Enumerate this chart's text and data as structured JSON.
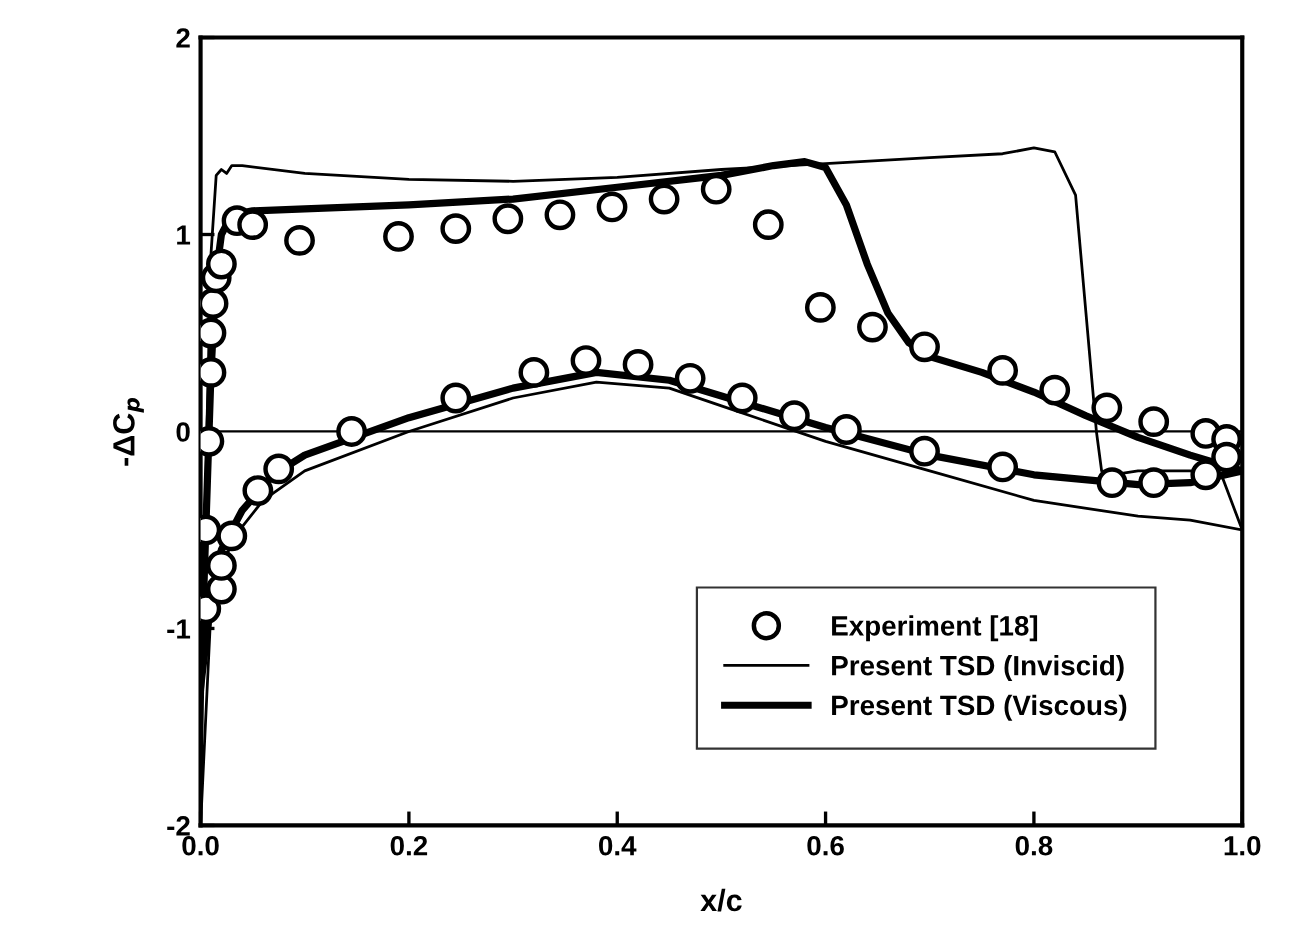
{
  "chart_data": {
    "type": "line",
    "xlabel": "x/c",
    "ylabel": "-ΔC$_{p}$",
    "xlim": [
      0,
      1
    ],
    "ylim": [
      -2,
      2
    ],
    "xticks": [
      {
        "value": 0,
        "label": "0.0"
      },
      {
        "value": 0.2,
        "label": "0.2"
      },
      {
        "value": 0.4,
        "label": "0.4"
      },
      {
        "value": 0.6,
        "label": "0.6"
      },
      {
        "value": 0.8,
        "label": "0.8"
      },
      {
        "value": 1,
        "label": "1.0"
      }
    ],
    "yticks": [
      -2,
      -1,
      0,
      1,
      2
    ],
    "grid": false,
    "legend": "bottom right",
    "ref_lines": [
      {
        "axis": "y",
        "value": 0,
        "color": "#000000",
        "line_style": "solid"
      }
    ],
    "series": [
      {
        "name": "Experiment [18]",
        "type": "scatter",
        "marker": "circle",
        "color": "#000000",
        "x": [
          0.005,
          0.005,
          0.008,
          0.01,
          0.01,
          0.012,
          0.015,
          0.02,
          0.035,
          0.05,
          0.095,
          0.19,
          0.245,
          0.295,
          0.345,
          0.395,
          0.445,
          0.495,
          0.545,
          0.595,
          0.645,
          0.695,
          0.77,
          0.82,
          0.87,
          0.915,
          0.965,
          0.985,
          0.02,
          0.02,
          0.03,
          0.055,
          0.075,
          0.145,
          0.245,
          0.32,
          0.37,
          0.42,
          0.47,
          0.52,
          0.57,
          0.62,
          0.695,
          0.77,
          0.875,
          0.915,
          0.965,
          0.985
        ],
        "values": [
          -0.9,
          -0.5,
          -0.05,
          0.3,
          0.5,
          0.65,
          0.78,
          0.85,
          1.07,
          1.05,
          0.97,
          0.99,
          1.03,
          1.08,
          1.1,
          1.14,
          1.18,
          1.23,
          1.05,
          0.63,
          0.53,
          0.43,
          0.31,
          0.21,
          0.12,
          0.05,
          -0.01,
          -0.04,
          -0.8,
          -0.68,
          -0.53,
          -0.3,
          -0.19,
          0.0,
          0.17,
          0.3,
          0.36,
          0.34,
          0.27,
          0.17,
          0.08,
          0.01,
          -0.1,
          -0.18,
          -0.26,
          -0.26,
          -0.22,
          -0.13
        ]
      },
      {
        "name": "Present TSD (Inviscid)",
        "marker": "none",
        "line_style": "solid",
        "color": "#000000",
        "x": [
          0.0,
          0.003,
          0.006,
          0.01,
          0.015,
          0.02,
          0.025,
          0.03,
          0.04,
          0.1,
          0.2,
          0.3,
          0.4,
          0.5,
          0.6,
          0.7,
          0.77,
          0.8,
          0.82,
          0.84,
          0.85,
          0.86,
          0.865,
          0.875,
          0.9,
          0.95,
          0.98,
          1.0
        ],
        "values": [
          -2.0,
          -1.0,
          0.0,
          0.9,
          1.3,
          1.33,
          1.31,
          1.35,
          1.35,
          1.31,
          1.28,
          1.27,
          1.29,
          1.33,
          1.36,
          1.39,
          1.41,
          1.44,
          1.42,
          1.2,
          0.6,
          0.0,
          -0.2,
          -0.22,
          -0.2,
          -0.2,
          -0.22,
          -0.5
        ]
      },
      {
        "marker": "none",
        "line_style": "solid",
        "color": "#000000",
        "x": [
          0.0,
          0.01,
          0.03,
          0.06,
          0.1,
          0.2,
          0.3,
          0.38,
          0.45,
          0.5,
          0.6,
          0.7,
          0.8,
          0.9,
          0.95,
          1.0
        ],
        "values": [
          -2.0,
          -0.9,
          -0.55,
          -0.35,
          -0.2,
          0.0,
          0.17,
          0.25,
          0.22,
          0.13,
          -0.05,
          -0.2,
          -0.35,
          -0.43,
          -0.45,
          -0.5
        ]
      },
      {
        "name": "Present TSD (Viscous)",
        "marker": "none",
        "line_style": "solid",
        "color": "#000000",
        "x": [
          0.0,
          0.005,
          0.01,
          0.015,
          0.02,
          0.03,
          0.05,
          0.1,
          0.2,
          0.3,
          0.4,
          0.5,
          0.55,
          0.58,
          0.6,
          0.62,
          0.64,
          0.66,
          0.68,
          0.7,
          0.75,
          0.8,
          0.85,
          0.9,
          0.95,
          1.0
        ],
        "values": [
          -1.3,
          -0.5,
          0.3,
          0.8,
          1.0,
          1.1,
          1.12,
          1.13,
          1.15,
          1.18,
          1.24,
          1.3,
          1.35,
          1.37,
          1.34,
          1.15,
          0.85,
          0.6,
          0.45,
          0.38,
          0.3,
          0.2,
          0.08,
          -0.03,
          -0.12,
          -0.2
        ]
      },
      {
        "marker": "none",
        "line_style": "solid",
        "color": "#000000",
        "x": [
          0.0,
          0.01,
          0.02,
          0.04,
          0.07,
          0.1,
          0.2,
          0.3,
          0.38,
          0.45,
          0.5,
          0.6,
          0.7,
          0.8,
          0.9,
          0.95,
          1.0
        ],
        "values": [
          -1.3,
          -0.85,
          -0.6,
          -0.4,
          -0.22,
          -0.12,
          0.07,
          0.22,
          0.3,
          0.26,
          0.18,
          0.02,
          -0.12,
          -0.22,
          -0.27,
          -0.26,
          -0.2
        ]
      }
    ]
  }
}
